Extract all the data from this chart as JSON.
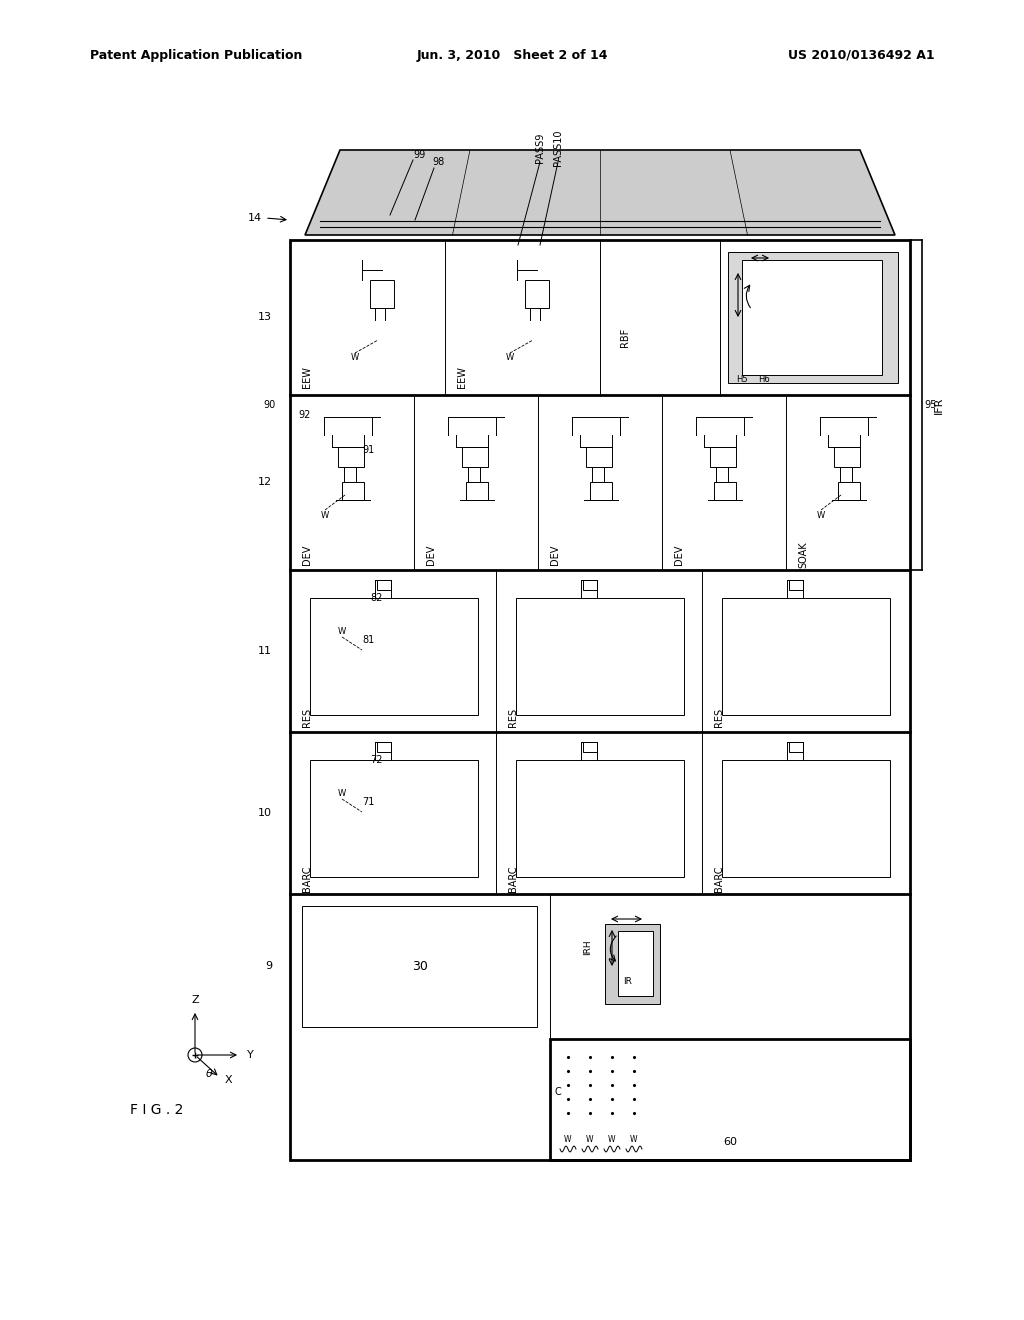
{
  "header_left": "Patent Application Publication",
  "header_mid": "Jun. 3, 2010   Sheet 2 of 14",
  "header_right": "US 2010/0136492 A1",
  "fig_label": "F I G . 2",
  "bg_color": "#ffffff",
  "line_color": "#000000"
}
